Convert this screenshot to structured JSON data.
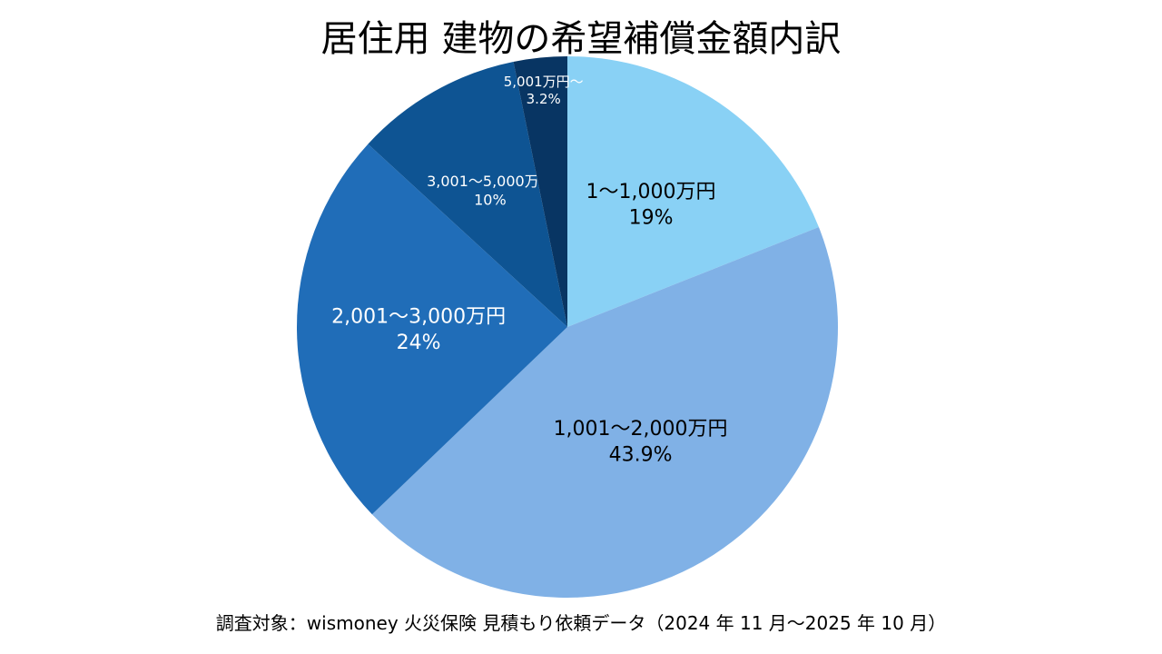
{
  "chart_data": {
    "type": "pie",
    "title": "居住用 建物の希望補償金額内訳",
    "start_angle_deg": 0,
    "direction": "clockwise",
    "slices": [
      {
        "label": "1〜1,000万円",
        "value": 19,
        "value_label": "19%",
        "color": "#89D1F5",
        "label_color": "#000000"
      },
      {
        "label": "1,001〜2,000万円",
        "value": 43.9,
        "value_label": "43.9%",
        "color": "#80B1E6",
        "label_color": "#000000"
      },
      {
        "label": "2,001〜3,000万円",
        "value": 24,
        "value_label": "24%",
        "color": "#206DB8",
        "label_color": "#FFFFFF"
      },
      {
        "label": "3,001〜5,000万円",
        "value": 10,
        "value_label": "10%",
        "color": "#0E5493",
        "label_color": "#FFFFFF"
      },
      {
        "label": "5,001万円〜",
        "value": 3.2,
        "value_label": "3.2%",
        "color": "#083563",
        "label_color": "#FFFFFF"
      }
    ],
    "legend": "none"
  },
  "source_note": "調査対象：wismoney 火災保険 見積もり依頼データ（2024 年 11 月〜2025 年 10 月）"
}
